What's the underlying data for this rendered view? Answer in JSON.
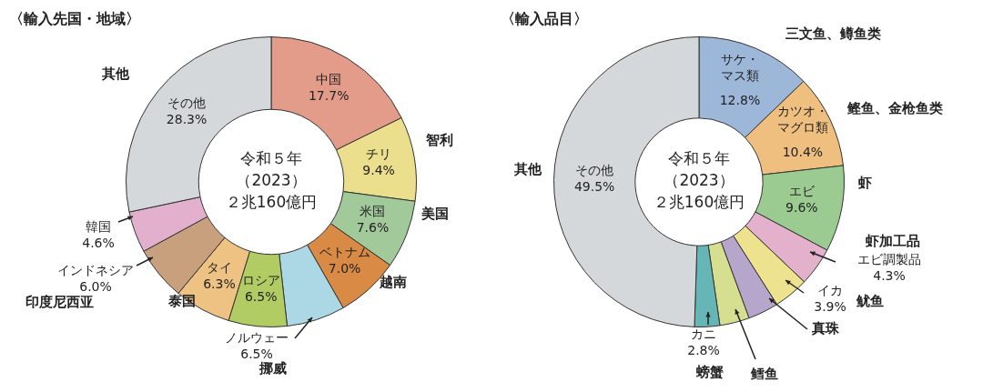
{
  "chart_data": [
    {
      "type": "donut",
      "title": "〈輸入先国・地域〉",
      "categories": [
        "中国",
        "チリ",
        "米国",
        "ベトナム",
        "ノルウェー",
        "ロシア",
        "タイ",
        "インドネシア",
        "韓国",
        "その他"
      ],
      "values": [
        17.7,
        9.4,
        7.6,
        7.0,
        6.5,
        6.5,
        6.3,
        6.0,
        4.6,
        28.3
      ],
      "value_labels": [
        "17.7%",
        "9.4%",
        "7.6%",
        "7.0%",
        "6.5%",
        "6.5%",
        "6.3%",
        "6.0%",
        "4.6%",
        "28.3%"
      ],
      "colors": [
        "#e39b8a",
        "#ebdf8d",
        "#a2c99a",
        "#d98a45",
        "#acd8e6",
        "#b0cc63",
        "#eec283",
        "#c9a07e",
        "#e2b0cc",
        "#d4d8db"
      ],
      "annotations": [
        "令和５年",
        "（2023）",
        "２兆160億円",
        "其他",
        "智利",
        "美国",
        "越南",
        "挪威",
        "泰国",
        "印度尼西亚"
      ],
      "legend": false
    },
    {
      "type": "donut",
      "title": "〈輸入品目〉",
      "categories": [
        "サケ・マス類",
        "カツオ・マグロ類",
        "エビ",
        "エビ調製品",
        "イカ",
        null,
        null,
        "カニ",
        "その他"
      ],
      "values": [
        12.8,
        10.4,
        9.6,
        4.3,
        3.9,
        3.4,
        3.3,
        2.8,
        49.5
      ],
      "value_labels": [
        "12.8%",
        "10.4%",
        "9.6%",
        "4.3%",
        "3.9%",
        null,
        null,
        "2.8%",
        "49.5%"
      ],
      "colors": [
        "#9db7d8",
        "#eebf7e",
        "#9ccb92",
        "#e4b1cd",
        "#ede38e",
        "#b6a6cb",
        "#d6df8f",
        "#66b6b7",
        "#d4d8db"
      ],
      "annotations": [
        "令和５年",
        "（2023）",
        "２兆160億円",
        "三文鱼、鳟鱼类",
        "鲣鱼、金枪鱼类",
        "虾",
        "虾加工品",
        "鱿鱼",
        "真珠",
        "鳕鱼",
        "螃蟹",
        "其他"
      ],
      "legend": false
    }
  ]
}
